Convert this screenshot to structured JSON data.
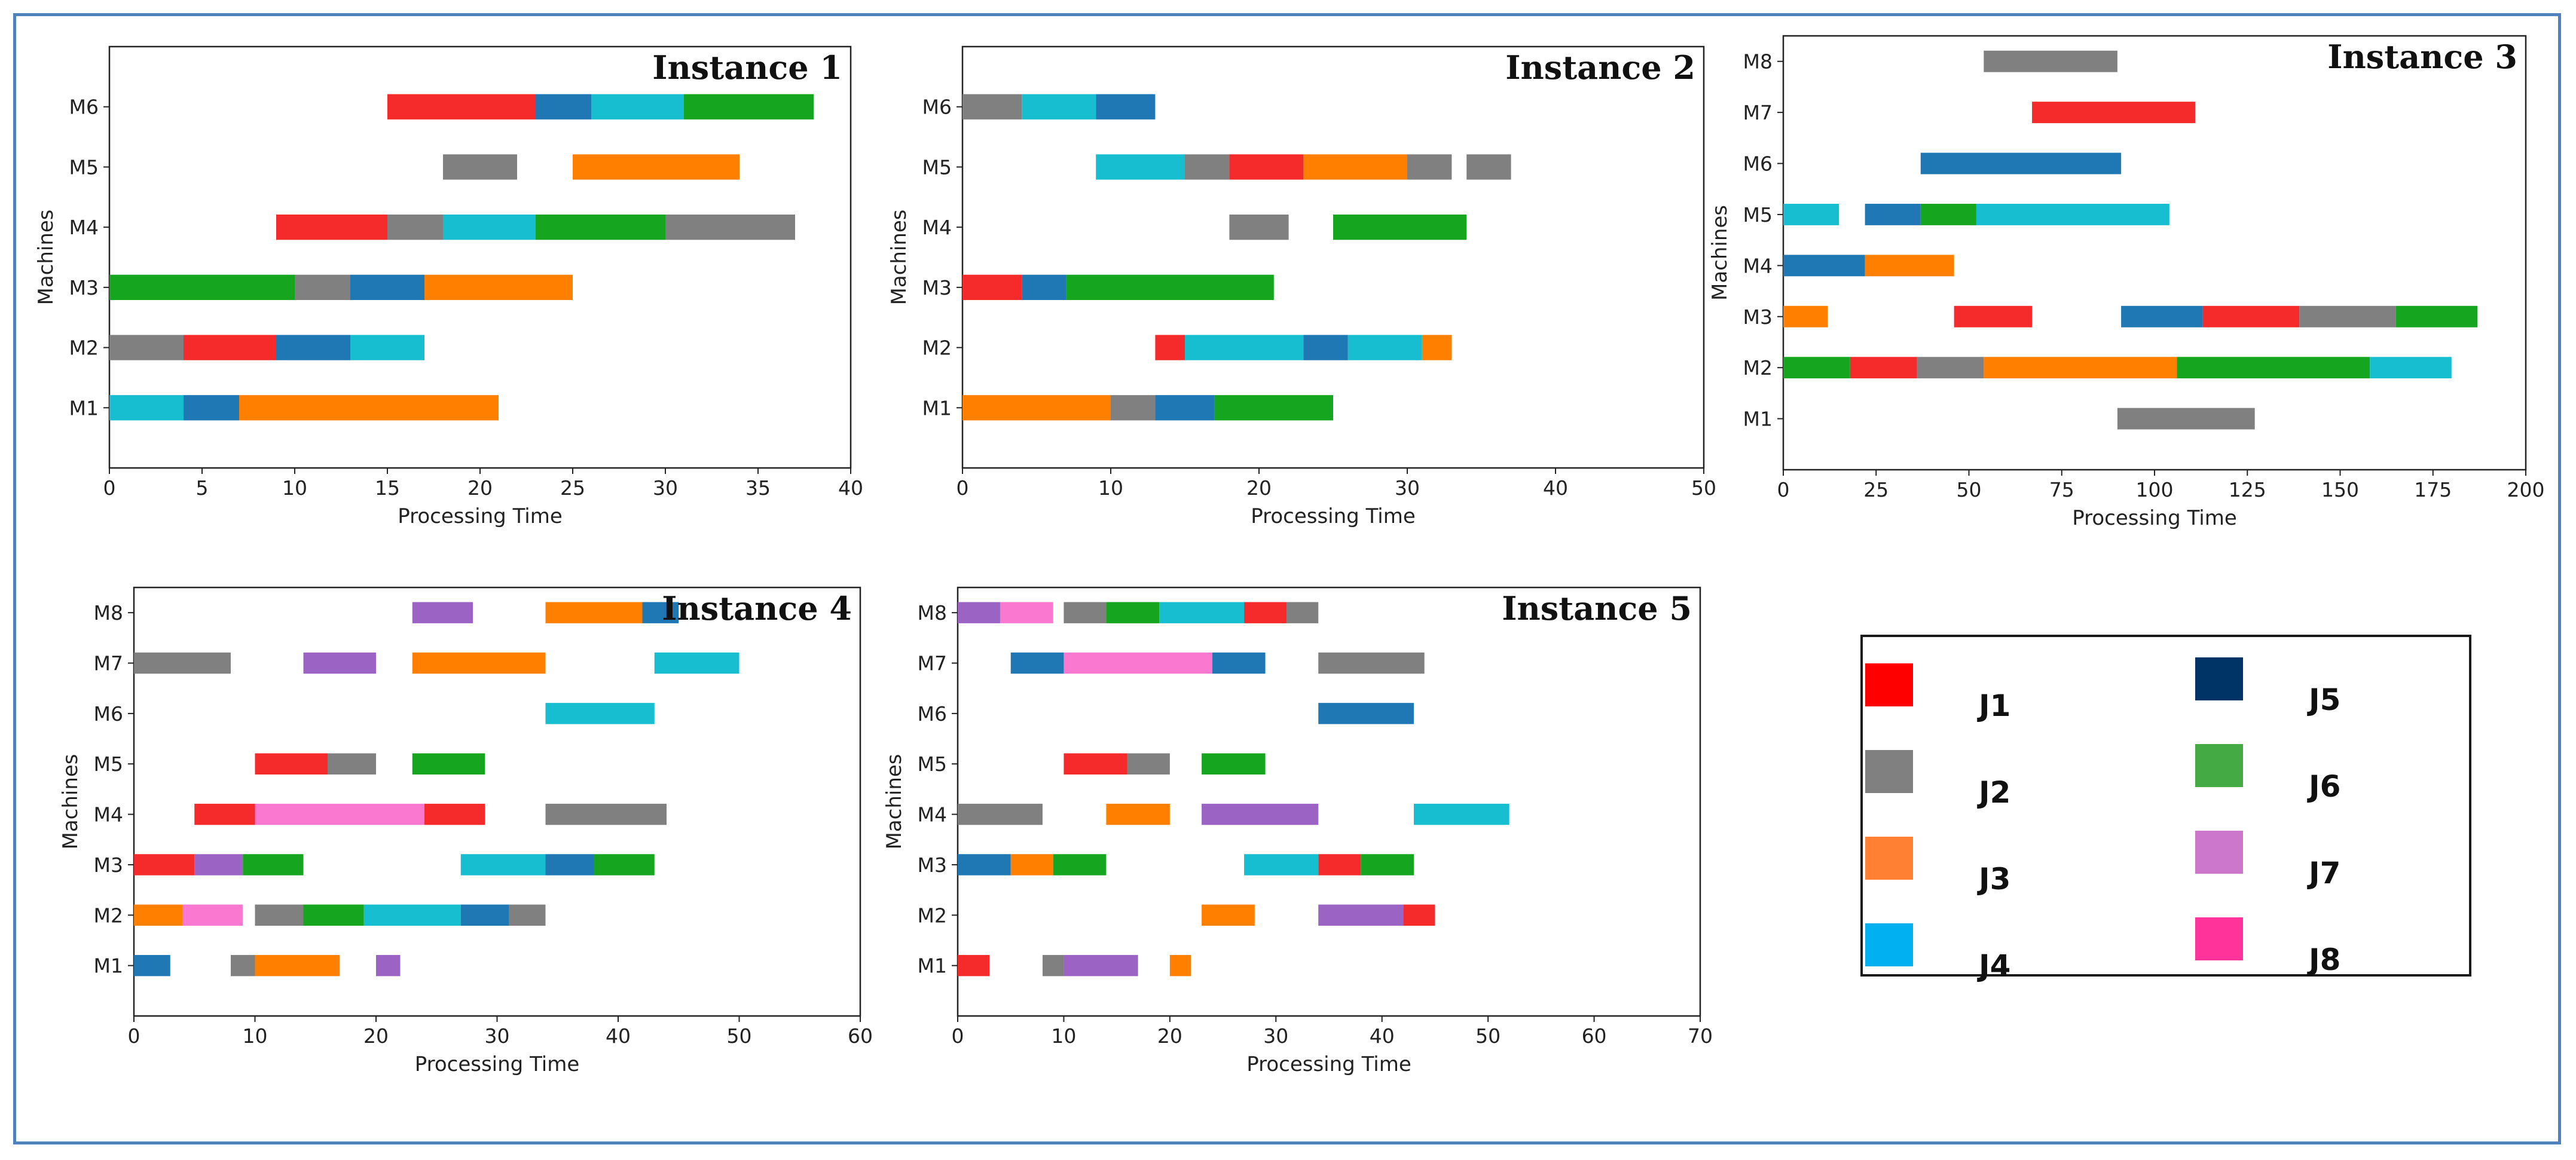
{
  "figure": {
    "xlabel": "Processing Time",
    "ylabel": "Machines"
  },
  "colors": {
    "J1": "#f52a2a",
    "J2": "#808080",
    "J3": "#ff8000",
    "J4": "#17becf",
    "J5": "#1f77b4",
    "J6": "#16a51f",
    "J7": "#9b63c4",
    "J8": "#fb78d0",
    "frame": "#4f81bd"
  },
  "legend": {
    "items": [
      {
        "label": "J1",
        "color": "#ff0000"
      },
      {
        "label": "J2",
        "color": "#808080"
      },
      {
        "label": "J3",
        "color": "#ff8033"
      },
      {
        "label": "J4",
        "color": "#00b0f0"
      },
      {
        "label": "J5",
        "color": "#003366"
      },
      {
        "label": "J6",
        "color": "#44aa44"
      },
      {
        "label": "J7",
        "color": "#cc77cc"
      },
      {
        "label": "J8",
        "color": "#ff3399"
      }
    ]
  },
  "chart_data": [
    {
      "type": "gantt",
      "title": "Instance 1",
      "xlabel": "Processing Time",
      "ylabel": "Machines",
      "xlim": [
        0,
        40
      ],
      "xticks": [
        0,
        5,
        10,
        15,
        20,
        25,
        30,
        35,
        40
      ],
      "machines": [
        "M1",
        "M2",
        "M3",
        "M4",
        "M5",
        "M6"
      ],
      "ymax": 7,
      "tasks": [
        {
          "machine": "M1",
          "job": "J4",
          "start": 0,
          "end": 4
        },
        {
          "machine": "M1",
          "job": "J5",
          "start": 4,
          "end": 7
        },
        {
          "machine": "M1",
          "job": "J3",
          "start": 7,
          "end": 21
        },
        {
          "machine": "M2",
          "job": "J2",
          "start": 0,
          "end": 4
        },
        {
          "machine": "M2",
          "job": "J1",
          "start": 4,
          "end": 9
        },
        {
          "machine": "M2",
          "job": "J5",
          "start": 9,
          "end": 13
        },
        {
          "machine": "M2",
          "job": "J4",
          "start": 13,
          "end": 17
        },
        {
          "machine": "M3",
          "job": "J6",
          "start": 0,
          "end": 10
        },
        {
          "machine": "M3",
          "job": "J2",
          "start": 10,
          "end": 13
        },
        {
          "machine": "M3",
          "job": "J5",
          "start": 13,
          "end": 17
        },
        {
          "machine": "M3",
          "job": "J3",
          "start": 17,
          "end": 25
        },
        {
          "machine": "M4",
          "job": "J1",
          "start": 9,
          "end": 15
        },
        {
          "machine": "M4",
          "job": "J2",
          "start": 15,
          "end": 18
        },
        {
          "machine": "M4",
          "job": "J4",
          "start": 18,
          "end": 23
        },
        {
          "machine": "M4",
          "job": "J6",
          "start": 23,
          "end": 30
        },
        {
          "machine": "M4",
          "job": "J2",
          "start": 30,
          "end": 37
        },
        {
          "machine": "M5",
          "job": "J2",
          "start": 18,
          "end": 22
        },
        {
          "machine": "M5",
          "job": "J3",
          "start": 25,
          "end": 34
        },
        {
          "machine": "M6",
          "job": "J1",
          "start": 15,
          "end": 23
        },
        {
          "machine": "M6",
          "job": "J5",
          "start": 23,
          "end": 26
        },
        {
          "machine": "M6",
          "job": "J4",
          "start": 26,
          "end": 31
        },
        {
          "machine": "M6",
          "job": "J6",
          "start": 31,
          "end": 38
        }
      ]
    },
    {
      "type": "gantt",
      "title": "Instance 2",
      "xlabel": "Processing Time",
      "ylabel": "Machines",
      "xlim": [
        0,
        50
      ],
      "xticks": [
        0,
        10,
        20,
        30,
        40,
        50
      ],
      "machines": [
        "M1",
        "M2",
        "M3",
        "M4",
        "M5",
        "M6"
      ],
      "ymax": 7,
      "tasks": [
        {
          "machine": "M1",
          "job": "J3",
          "start": 0,
          "end": 10
        },
        {
          "machine": "M1",
          "job": "J2",
          "start": 10,
          "end": 13
        },
        {
          "machine": "M1",
          "job": "J5",
          "start": 13,
          "end": 17
        },
        {
          "machine": "M1",
          "job": "J6",
          "start": 17,
          "end": 25
        },
        {
          "machine": "M2",
          "job": "J1",
          "start": 13,
          "end": 15
        },
        {
          "machine": "M2",
          "job": "J4",
          "start": 15,
          "end": 23
        },
        {
          "machine": "M2",
          "job": "J5",
          "start": 23,
          "end": 26
        },
        {
          "machine": "M2",
          "job": "J4",
          "start": 26,
          "end": 31
        },
        {
          "machine": "M2",
          "job": "J3",
          "start": 31,
          "end": 33
        },
        {
          "machine": "M3",
          "job": "J1",
          "start": 0,
          "end": 4
        },
        {
          "machine": "M3",
          "job": "J5",
          "start": 4,
          "end": 7
        },
        {
          "machine": "M3",
          "job": "J6",
          "start": 7,
          "end": 21
        },
        {
          "machine": "M4",
          "job": "J2",
          "start": 18,
          "end": 22
        },
        {
          "machine": "M4",
          "job": "J6",
          "start": 25,
          "end": 34
        },
        {
          "machine": "M5",
          "job": "J4",
          "start": 9,
          "end": 15
        },
        {
          "machine": "M5",
          "job": "J2",
          "start": 15,
          "end": 18
        },
        {
          "machine": "M5",
          "job": "J1",
          "start": 18,
          "end": 23
        },
        {
          "machine": "M5",
          "job": "J3",
          "start": 23,
          "end": 30
        },
        {
          "machine": "M5",
          "job": "J2",
          "start": 30,
          "end": 33
        },
        {
          "machine": "M5",
          "job": "J2",
          "start": 34,
          "end": 37
        },
        {
          "machine": "M6",
          "job": "J2",
          "start": 0,
          "end": 4
        },
        {
          "machine": "M6",
          "job": "J4",
          "start": 4,
          "end": 9
        },
        {
          "machine": "M6",
          "job": "J5",
          "start": 9,
          "end": 13
        }
      ]
    },
    {
      "type": "gantt",
      "title": "Instance 3",
      "xlabel": "Processing Time",
      "ylabel": "Machines",
      "xlim": [
        0,
        200
      ],
      "xticks": [
        0,
        25,
        50,
        75,
        100,
        125,
        150,
        175,
        200
      ],
      "machines": [
        "M1",
        "M2",
        "M3",
        "M4",
        "M5",
        "M6",
        "M7",
        "M8"
      ],
      "ymax": 8.5,
      "tasks": [
        {
          "machine": "M1",
          "job": "J2",
          "start": 90,
          "end": 127
        },
        {
          "machine": "M2",
          "job": "J6",
          "start": 0,
          "end": 18
        },
        {
          "machine": "M2",
          "job": "J1",
          "start": 18,
          "end": 36
        },
        {
          "machine": "M2",
          "job": "J2",
          "start": 36,
          "end": 54
        },
        {
          "machine": "M2",
          "job": "J3",
          "start": 54,
          "end": 106
        },
        {
          "machine": "M2",
          "job": "J6",
          "start": 106,
          "end": 158
        },
        {
          "machine": "M2",
          "job": "J4",
          "start": 158,
          "end": 180
        },
        {
          "machine": "M3",
          "job": "J3",
          "start": 0,
          "end": 12
        },
        {
          "machine": "M3",
          "job": "J1",
          "start": 46,
          "end": 67
        },
        {
          "machine": "M3",
          "job": "J5",
          "start": 91,
          "end": 113
        },
        {
          "machine": "M3",
          "job": "J1",
          "start": 113,
          "end": 139
        },
        {
          "machine": "M3",
          "job": "J2",
          "start": 139,
          "end": 165
        },
        {
          "machine": "M3",
          "job": "J6",
          "start": 165,
          "end": 187
        },
        {
          "machine": "M4",
          "job": "J5",
          "start": 0,
          "end": 22
        },
        {
          "machine": "M4",
          "job": "J3",
          "start": 22,
          "end": 46
        },
        {
          "machine": "M5",
          "job": "J4",
          "start": 0,
          "end": 15
        },
        {
          "machine": "M5",
          "job": "J5",
          "start": 22,
          "end": 37
        },
        {
          "machine": "M5",
          "job": "J6",
          "start": 37,
          "end": 52
        },
        {
          "machine": "M5",
          "job": "J4",
          "start": 52,
          "end": 104
        },
        {
          "machine": "M6",
          "job": "J5",
          "start": 37,
          "end": 91
        },
        {
          "machine": "M7",
          "job": "J1",
          "start": 67,
          "end": 111
        },
        {
          "machine": "M8",
          "job": "J2",
          "start": 54,
          "end": 90
        }
      ]
    },
    {
      "type": "gantt",
      "title": "Instance 4",
      "xlabel": "Processing Time",
      "ylabel": "Machines",
      "xlim": [
        0,
        60
      ],
      "xticks": [
        0,
        10,
        20,
        30,
        40,
        50,
        60
      ],
      "machines": [
        "M1",
        "M2",
        "M3",
        "M4",
        "M5",
        "M6",
        "M7",
        "M8"
      ],
      "ymax": 8.5,
      "tasks": [
        {
          "machine": "M1",
          "job": "J5",
          "start": 0,
          "end": 3
        },
        {
          "machine": "M1",
          "job": "J2",
          "start": 8,
          "end": 10
        },
        {
          "machine": "M1",
          "job": "J3",
          "start": 10,
          "end": 17
        },
        {
          "machine": "M1",
          "job": "J7",
          "start": 20,
          "end": 22
        },
        {
          "machine": "M2",
          "job": "J3",
          "start": 0,
          "end": 4
        },
        {
          "machine": "M2",
          "job": "J8",
          "start": 4,
          "end": 9
        },
        {
          "machine": "M2",
          "job": "J2",
          "start": 10,
          "end": 14
        },
        {
          "machine": "M2",
          "job": "J6",
          "start": 14,
          "end": 19
        },
        {
          "machine": "M2",
          "job": "J4",
          "start": 19,
          "end": 27
        },
        {
          "machine": "M2",
          "job": "J5",
          "start": 27,
          "end": 31
        },
        {
          "machine": "M2",
          "job": "J2",
          "start": 31,
          "end": 34
        },
        {
          "machine": "M3",
          "job": "J1",
          "start": 0,
          "end": 5
        },
        {
          "machine": "M3",
          "job": "J7",
          "start": 5,
          "end": 9
        },
        {
          "machine": "M3",
          "job": "J6",
          "start": 9,
          "end": 14
        },
        {
          "machine": "M3",
          "job": "J4",
          "start": 27,
          "end": 34
        },
        {
          "machine": "M3",
          "job": "J5",
          "start": 34,
          "end": 38
        },
        {
          "machine": "M3",
          "job": "J6",
          "start": 38,
          "end": 43
        },
        {
          "machine": "M4",
          "job": "J1",
          "start": 5,
          "end": 10
        },
        {
          "machine": "M4",
          "job": "J8",
          "start": 10,
          "end": 24
        },
        {
          "machine": "M4",
          "job": "J1",
          "start": 24,
          "end": 29
        },
        {
          "machine": "M4",
          "job": "J2",
          "start": 34,
          "end": 44
        },
        {
          "machine": "M5",
          "job": "J1",
          "start": 10,
          "end": 16
        },
        {
          "machine": "M5",
          "job": "J2",
          "start": 16,
          "end": 20
        },
        {
          "machine": "M5",
          "job": "J6",
          "start": 23,
          "end": 29
        },
        {
          "machine": "M6",
          "job": "J4",
          "start": 34,
          "end": 43
        },
        {
          "machine": "M7",
          "job": "J2",
          "start": 0,
          "end": 8
        },
        {
          "machine": "M7",
          "job": "J7",
          "start": 14,
          "end": 20
        },
        {
          "machine": "M7",
          "job": "J3",
          "start": 23,
          "end": 34
        },
        {
          "machine": "M7",
          "job": "J4",
          "start": 43,
          "end": 50
        },
        {
          "machine": "M8",
          "job": "J7",
          "start": 23,
          "end": 28
        },
        {
          "machine": "M8",
          "job": "J3",
          "start": 34,
          "end": 42
        },
        {
          "machine": "M8",
          "job": "J5",
          "start": 42,
          "end": 45
        }
      ]
    },
    {
      "type": "gantt",
      "title": "Instance 5",
      "xlabel": "Processing Time",
      "ylabel": "Machines",
      "xlim": [
        0,
        70
      ],
      "xticks": [
        0,
        10,
        20,
        30,
        40,
        50,
        60,
        70
      ],
      "machines": [
        "M1",
        "M2",
        "M3",
        "M4",
        "M5",
        "M6",
        "M7",
        "M8"
      ],
      "ymax": 8.5,
      "tasks": [
        {
          "machine": "M1",
          "job": "J1",
          "start": 0,
          "end": 3
        },
        {
          "machine": "M1",
          "job": "J2",
          "start": 8,
          "end": 10
        },
        {
          "machine": "M1",
          "job": "J7",
          "start": 10,
          "end": 17
        },
        {
          "machine": "M1",
          "job": "J3",
          "start": 20,
          "end": 22
        },
        {
          "machine": "M2",
          "job": "J3",
          "start": 23,
          "end": 28
        },
        {
          "machine": "M2",
          "job": "J7",
          "start": 34,
          "end": 42
        },
        {
          "machine": "M2",
          "job": "J1",
          "start": 42,
          "end": 45
        },
        {
          "machine": "M3",
          "job": "J5",
          "start": 0,
          "end": 5
        },
        {
          "machine": "M3",
          "job": "J3",
          "start": 5,
          "end": 9
        },
        {
          "machine": "M3",
          "job": "J6",
          "start": 9,
          "end": 14
        },
        {
          "machine": "M3",
          "job": "J4",
          "start": 27,
          "end": 34
        },
        {
          "machine": "M3",
          "job": "J1",
          "start": 34,
          "end": 38
        },
        {
          "machine": "M3",
          "job": "J6",
          "start": 38,
          "end": 43
        },
        {
          "machine": "M4",
          "job": "J2",
          "start": 0,
          "end": 8
        },
        {
          "machine": "M4",
          "job": "J3",
          "start": 14,
          "end": 20
        },
        {
          "machine": "M4",
          "job": "J7",
          "start": 23,
          "end": 34
        },
        {
          "machine": "M4",
          "job": "J4",
          "start": 43,
          "end": 52
        },
        {
          "machine": "M5",
          "job": "J1",
          "start": 10,
          "end": 16
        },
        {
          "machine": "M5",
          "job": "J2",
          "start": 16,
          "end": 20
        },
        {
          "machine": "M5",
          "job": "J6",
          "start": 23,
          "end": 29
        },
        {
          "machine": "M6",
          "job": "J5",
          "start": 34,
          "end": 43
        },
        {
          "machine": "M7",
          "job": "J5",
          "start": 5,
          "end": 10
        },
        {
          "machine": "M7",
          "job": "J8",
          "start": 10,
          "end": 24
        },
        {
          "machine": "M7",
          "job": "J5",
          "start": 24,
          "end": 29
        },
        {
          "machine": "M7",
          "job": "J2",
          "start": 34,
          "end": 44
        },
        {
          "machine": "M8",
          "job": "J7",
          "start": 0,
          "end": 4
        },
        {
          "machine": "M8",
          "job": "J8",
          "start": 4,
          "end": 9
        },
        {
          "machine": "M8",
          "job": "J2",
          "start": 10,
          "end": 14
        },
        {
          "machine": "M8",
          "job": "J6",
          "start": 14,
          "end": 19
        },
        {
          "machine": "M8",
          "job": "J4",
          "start": 19,
          "end": 27
        },
        {
          "machine": "M8",
          "job": "J1",
          "start": 27,
          "end": 31
        },
        {
          "machine": "M8",
          "job": "J2",
          "start": 31,
          "end": 34
        }
      ]
    }
  ]
}
